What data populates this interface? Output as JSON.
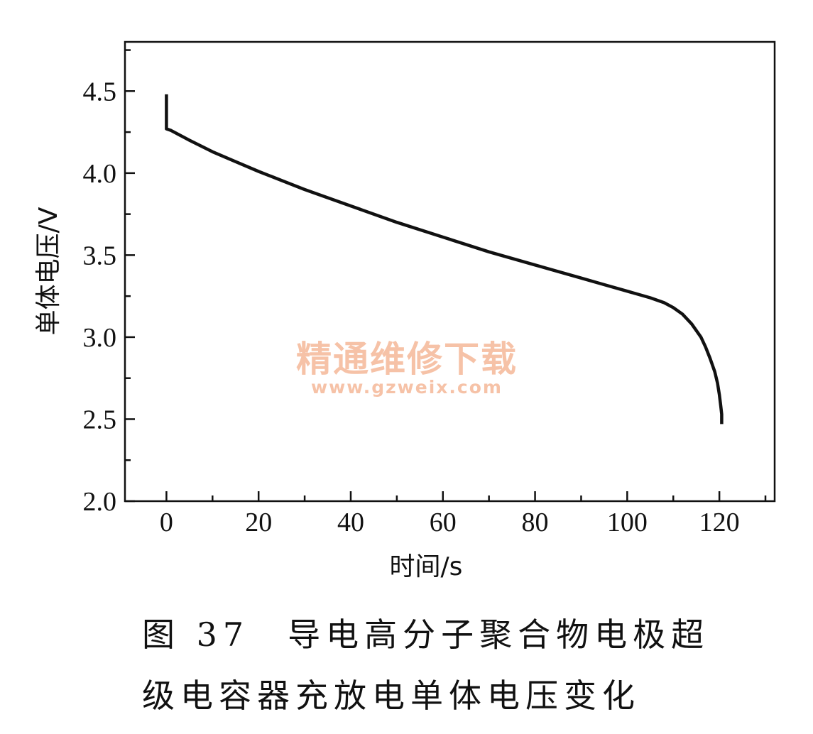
{
  "chart_data": {
    "type": "line",
    "xlabel": "时间/s",
    "ylabel": "单体电压/V",
    "xlim": [
      -9,
      132
    ],
    "ylim": [
      2.0,
      4.8
    ],
    "xticks": [
      0,
      20,
      40,
      60,
      80,
      100,
      120
    ],
    "xtick_labels": [
      "0",
      "20",
      "40",
      "60",
      "80",
      "100",
      "120"
    ],
    "yticks": [
      2.0,
      2.5,
      3.0,
      3.5,
      4.0,
      4.5
    ],
    "ytick_labels": [
      "2.0",
      "2.5",
      "3.0",
      "3.5",
      "4.0",
      "4.5"
    ],
    "grid": false,
    "series": [
      {
        "x": [
          0,
          0,
          1,
          5,
          10,
          15,
          20,
          30,
          40,
          50,
          60,
          70,
          80,
          90,
          95,
          100,
          105,
          108,
          110,
          112,
          114,
          116,
          117,
          118,
          119,
          119.6,
          120,
          120.3,
          120.5,
          120.5
        ],
        "y": [
          4.48,
          4.27,
          4.26,
          4.2,
          4.13,
          4.07,
          4.01,
          3.9,
          3.8,
          3.7,
          3.61,
          3.52,
          3.44,
          3.36,
          3.32,
          3.28,
          3.24,
          3.21,
          3.18,
          3.14,
          3.08,
          3.0,
          2.94,
          2.87,
          2.79,
          2.72,
          2.65,
          2.58,
          2.53,
          2.47
        ]
      }
    ]
  },
  "watermark": {
    "text_cn": "精通维修下载",
    "url": "www.gzweix.com"
  },
  "caption": {
    "line1": "图 37　导电高分子聚合物电极超",
    "line2": "级电容器充放电单体电压变化"
  }
}
